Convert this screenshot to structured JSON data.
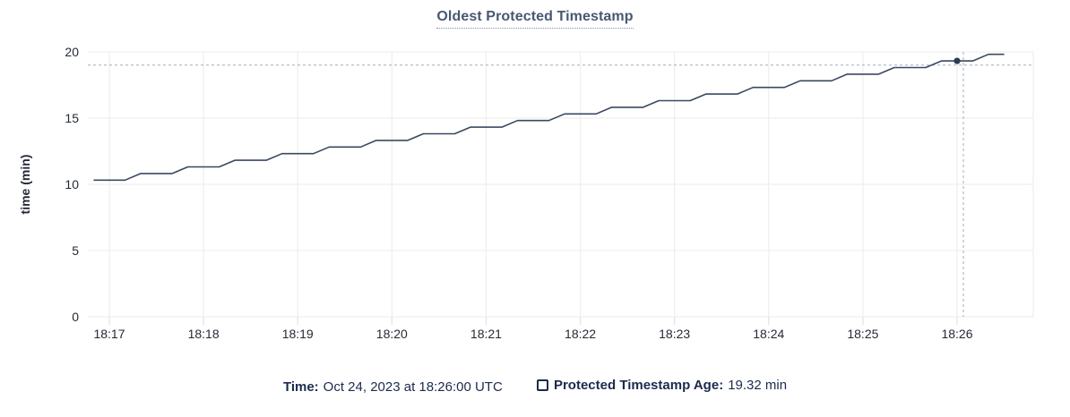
{
  "chart_data": {
    "type": "line",
    "title": "Oldest Protected Timestamp",
    "xlabel": "",
    "ylabel": "time (min)",
    "ylim": [
      0,
      20
    ],
    "yticks": [
      0,
      5,
      10,
      15,
      20
    ],
    "x_tick_labels": [
      "18:17",
      "18:18",
      "18:19",
      "18:20",
      "18:21",
      "18:22",
      "18:23",
      "18:24",
      "18:25",
      "18:26"
    ],
    "grid": true,
    "legend_position": "bottom",
    "series": [
      {
        "name": "Protected Timestamp Age",
        "unit": "min",
        "start_time": "18:16:50",
        "interval_seconds": 10,
        "values": [
          10.32,
          10.32,
          10.32,
          10.82,
          10.82,
          10.82,
          11.32,
          11.32,
          11.32,
          11.82,
          11.82,
          11.82,
          12.32,
          12.32,
          12.32,
          12.82,
          12.82,
          12.82,
          13.32,
          13.32,
          13.32,
          13.82,
          13.82,
          13.82,
          14.32,
          14.32,
          14.32,
          14.82,
          14.82,
          14.82,
          15.32,
          15.32,
          15.32,
          15.82,
          15.82,
          15.82,
          16.32,
          16.32,
          16.32,
          16.82,
          16.82,
          16.82,
          17.32,
          17.32,
          17.32,
          17.82,
          17.82,
          17.82,
          18.32,
          18.32,
          18.32,
          18.82,
          18.82,
          18.82,
          19.32,
          19.32,
          19.32,
          19.82,
          19.82
        ]
      }
    ],
    "hover_point": {
      "time": "18:26:00",
      "value": 19.32
    },
    "crosshair": {
      "x_time": "18:26:04",
      "y_value": 19.0
    }
  },
  "footer": {
    "time_label": "Time:",
    "time_value": "Oct 24, 2023 at 18:26:00 UTC",
    "series_label": "Protected Timestamp Age:",
    "series_value": "19.32 min"
  },
  "colors": {
    "line": "#3a4860",
    "title_text": "#475872",
    "axis_text": "#242a35",
    "grid": "#efeff1",
    "tick": "#e4e4e7",
    "crosshair": "#9db0bc",
    "dot": "#2c3a54",
    "footer_text": "#1b2b4e",
    "background": "#ffffff"
  }
}
